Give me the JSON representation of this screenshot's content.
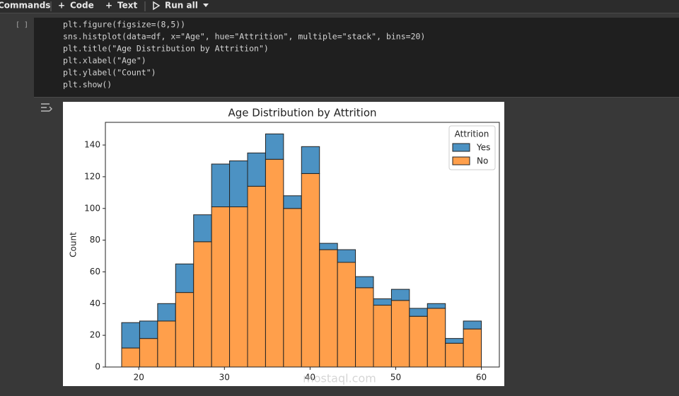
{
  "toolbar": {
    "commands": "Commands",
    "code": "Code",
    "text": "Text",
    "run_all": "Run all"
  },
  "cell": {
    "status": "[ ]",
    "code": [
      "plt.figure(figsize=(8,5))",
      "sns.histplot(data=df, x=\"Age\", hue=\"Attrition\", multiple=\"stack\", bins=20)",
      "plt.title(\"Age Distribution by Attrition\")",
      "plt.xlabel(\"Age\")",
      "plt.ylabel(\"Count\")",
      "plt.show()"
    ]
  },
  "watermark": "mostaql.com",
  "chart_data": {
    "type": "histogram",
    "title": "Age Distribution by Attrition",
    "y_label": "Count",
    "legend_title": "Attrition",
    "legend": "upper right",
    "stacked": true,
    "bins": [
      18,
      20.1,
      22.2,
      24.3,
      26.4,
      28.5,
      30.6,
      32.7,
      34.8,
      36.9,
      39,
      41.1,
      43.2,
      45.3,
      47.4,
      49.5,
      51.6,
      53.7,
      55.8,
      57.9,
      60
    ],
    "series": [
      {
        "name": "Yes",
        "color": "#4c92c3",
        "values": [
          16,
          11,
          11,
          18,
          17,
          27,
          29,
          21,
          16,
          8,
          17,
          4,
          8,
          7,
          4,
          7,
          5,
          3,
          3,
          5
        ]
      },
      {
        "name": "No",
        "color": "#ff9f4b",
        "values": [
          12,
          18,
          29,
          47,
          79,
          101,
          101,
          114,
          131,
          100,
          122,
          74,
          66,
          50,
          39,
          42,
          32,
          37,
          15,
          24
        ]
      }
    ],
    "xlim": [
      16.1,
      62.1
    ],
    "ylim": [
      0,
      154.3
    ],
    "xticks": [
      20,
      30,
      40,
      50,
      60
    ],
    "yticks": [
      0,
      20,
      40,
      60,
      80,
      100,
      120,
      140
    ]
  }
}
